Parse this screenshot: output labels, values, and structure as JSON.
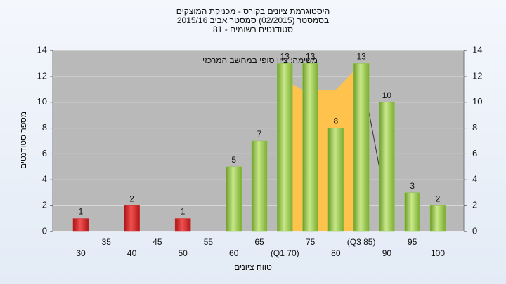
{
  "chart_data": {
    "type": "bar",
    "title": "היסטוגרמת ציונים בקורס - מכניקת המוצקים",
    "subtitle": "בסמסטר  (02/2015)  סמסטר אביב 2015/16",
    "subtitle2": "סטודנטים רשומים - 81",
    "annotation": "משימה: ציון סופי במחשב המרכזי",
    "xlabel": "טווח ציונים",
    "ylabel": "מספר סטודנטים",
    "categories": [
      "30",
      "35",
      "40",
      "45",
      "50",
      "55",
      "60",
      "65",
      "(Q1 70)",
      "75",
      "80",
      "(Q3 85)",
      "90",
      "95",
      "100"
    ],
    "values": [
      1,
      0,
      2,
      0,
      1,
      0,
      5,
      7,
      13,
      13,
      8,
      13,
      10,
      3,
      2
    ],
    "value_labels": [
      "1",
      null,
      "2",
      null,
      "1",
      null,
      "5",
      "7",
      "13",
      "13",
      "8",
      "13",
      "10",
      "3",
      "2"
    ],
    "colors": [
      "#d42020",
      "#d42020",
      "#d42020",
      "#d42020",
      "#d42020",
      "#d42020",
      "#8cc43c",
      "#8cc43c",
      "#8cc43c",
      "#8cc43c",
      "#8cc43c",
      "#8cc43c",
      "#8cc43c",
      "#8cc43c",
      "#8cc43c"
    ],
    "ylim": [
      0,
      14
    ],
    "yticks": [
      0,
      2,
      4,
      6,
      8,
      10,
      12,
      14
    ],
    "y2lim": [
      0,
      14
    ],
    "y2ticks": [
      0,
      2,
      4,
      6,
      8,
      10,
      12,
      14
    ],
    "grid": true
  }
}
